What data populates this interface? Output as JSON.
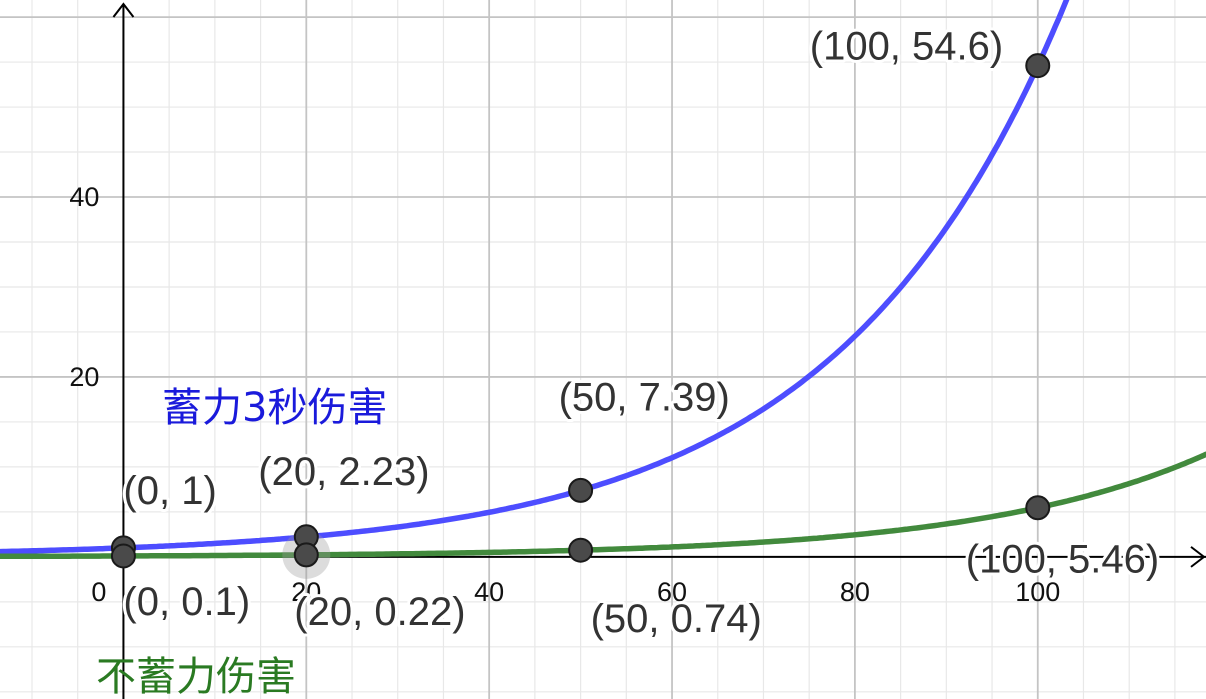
{
  "chart_data": {
    "type": "line",
    "grid": true,
    "xlim": [
      -13.5,
      118.4
    ],
    "ylim": [
      -15.8,
      61.9
    ],
    "x_ticks": [
      {
        "value": 0,
        "label": "0"
      },
      {
        "value": 20,
        "label": "20"
      },
      {
        "value": 40,
        "label": "40"
      },
      {
        "value": 60,
        "label": "60"
      },
      {
        "value": 80,
        "label": "80"
      },
      {
        "value": 100,
        "label": "100"
      }
    ],
    "y_ticks": [
      {
        "value": 20,
        "label": "20"
      },
      {
        "value": 40,
        "label": "40"
      }
    ],
    "series": [
      {
        "name": "蓄力3秒伤害",
        "color": "#4d4dff",
        "label_color": "#1a1adb",
        "function": {
          "type": "exponential",
          "a": 1,
          "b": 0.04
        },
        "points": [
          {
            "x": 0,
            "y": 1,
            "label": "(0, 1)"
          },
          {
            "x": 20,
            "y": 2.23,
            "label": "(20, 2.23)"
          },
          {
            "x": 50,
            "y": 7.39,
            "label": "(50, 7.39)"
          },
          {
            "x": 100,
            "y": 54.6,
            "label": "(100, 54.6)"
          }
        ]
      },
      {
        "name": "不蓄力伤害",
        "color": "#428a3d",
        "label_color": "#2a7a22",
        "function": {
          "type": "exponential",
          "a": 0.1,
          "b": 0.04
        },
        "points": [
          {
            "x": 0,
            "y": 0.1,
            "label": "(0, 0.1)"
          },
          {
            "x": 20,
            "y": 0.22,
            "label": "(20, 0.22)"
          },
          {
            "x": 50,
            "y": 0.74,
            "label": "(50, 0.74)"
          },
          {
            "x": 100,
            "y": 5.46,
            "label": "(100, 5.46)"
          }
        ]
      }
    ]
  }
}
